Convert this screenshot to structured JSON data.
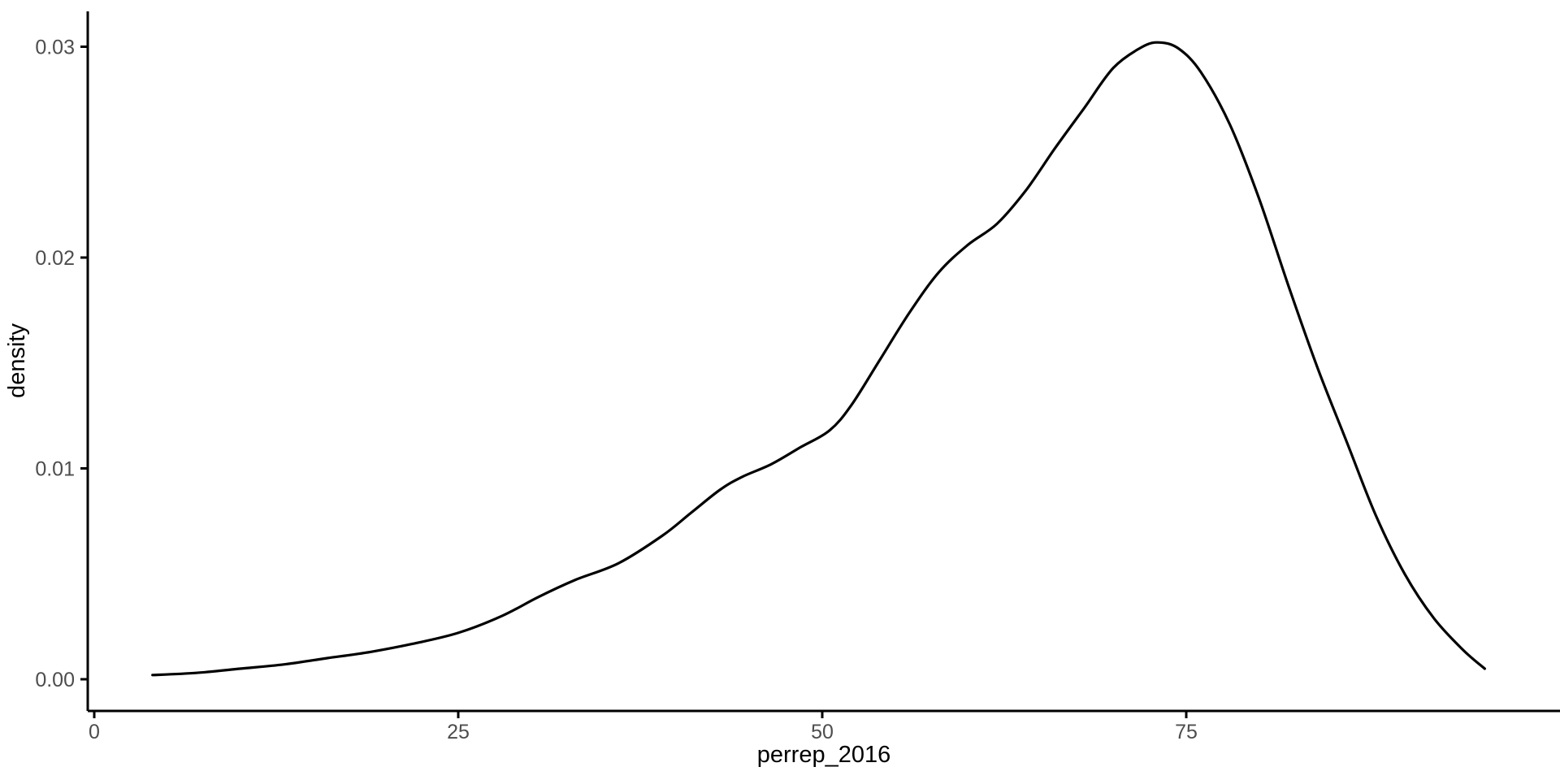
{
  "chart_data": {
    "type": "line",
    "subtype": "density-curve",
    "title": "",
    "xlabel": "perrep_2016",
    "ylabel": "density",
    "x_tick_values": [
      0,
      25,
      50,
      75
    ],
    "x_tick_labels": [
      "0",
      "25",
      "50",
      "75"
    ],
    "y_tick_values": [
      0.0,
      0.01,
      0.02,
      0.03
    ],
    "y_tick_labels": [
      "0.00",
      "0.01",
      "0.02",
      "0.03"
    ],
    "xlim": [
      -0.45,
      100.7
    ],
    "ylim": [
      -0.0015,
      0.0317
    ],
    "grid": "off",
    "legend": "none",
    "curve_color": "#000000",
    "axis_color": "#000000",
    "tick_label_color": "#4d4d4d",
    "background_color": "#ffffff",
    "points": [
      [
        4.0,
        0.0002
      ],
      [
        7.0,
        0.0003
      ],
      [
        10.0,
        0.0005
      ],
      [
        13.0,
        0.0007
      ],
      [
        16.0,
        0.001
      ],
      [
        19.0,
        0.0013
      ],
      [
        22.0,
        0.0017
      ],
      [
        25.0,
        0.0022
      ],
      [
        28.0,
        0.003
      ],
      [
        30.5,
        0.0039
      ],
      [
        33.0,
        0.0047
      ],
      [
        36.0,
        0.0055
      ],
      [
        39.0,
        0.0068
      ],
      [
        41.0,
        0.0079
      ],
      [
        43.0,
        0.009
      ],
      [
        44.5,
        0.0096
      ],
      [
        46.5,
        0.0102
      ],
      [
        48.5,
        0.011
      ],
      [
        50.5,
        0.0118
      ],
      [
        52.0,
        0.013
      ],
      [
        54.0,
        0.0152
      ],
      [
        56.0,
        0.0174
      ],
      [
        58.0,
        0.0193
      ],
      [
        60.0,
        0.0206
      ],
      [
        62.0,
        0.0216
      ],
      [
        64.0,
        0.0232
      ],
      [
        66.0,
        0.0252
      ],
      [
        68.0,
        0.0271
      ],
      [
        70.0,
        0.029
      ],
      [
        72.0,
        0.03
      ],
      [
        73.2,
        0.0302
      ],
      [
        74.5,
        0.0299
      ],
      [
        76.0,
        0.0288
      ],
      [
        78.0,
        0.0263
      ],
      [
        80.0,
        0.0228
      ],
      [
        82.0,
        0.0187
      ],
      [
        84.0,
        0.0148
      ],
      [
        86.0,
        0.0113
      ],
      [
        88.0,
        0.0078
      ],
      [
        90.0,
        0.005
      ],
      [
        92.0,
        0.0029
      ],
      [
        94.0,
        0.0014
      ],
      [
        95.5,
        0.0005
      ]
    ]
  }
}
